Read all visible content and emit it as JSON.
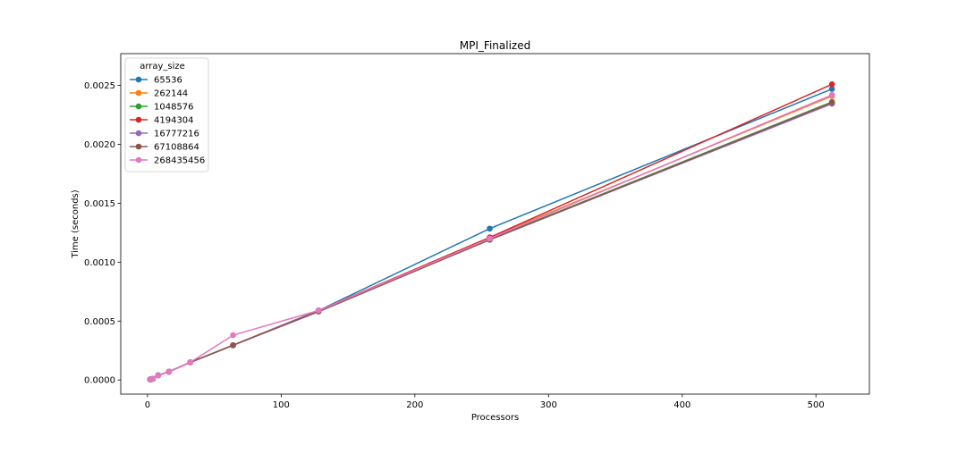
{
  "chart_data": {
    "type": "line",
    "title": "MPI_Finalized",
    "xlabel": "Processors",
    "ylabel": "Time (seconds)",
    "xlim": [
      -20,
      540
    ],
    "ylim": [
      -0.00012,
      0.00277
    ],
    "x_ticks": [
      0,
      100,
      200,
      300,
      400,
      500
    ],
    "y_ticks": [
      0.0,
      0.0005,
      0.001,
      0.0015,
      0.002,
      0.0025
    ],
    "x_tick_labels": [
      "0",
      "100",
      "200",
      "300",
      "400",
      "500"
    ],
    "y_tick_labels": [
      "0.0000",
      "0.0005",
      "0.0010",
      "0.0015",
      "0.0020",
      "0.0025"
    ],
    "grid": false,
    "legend_title": "array_size",
    "legend_position": "upper-left",
    "x": [
      2,
      4,
      8,
      16,
      32,
      64,
      128,
      256,
      512
    ],
    "series": [
      {
        "name": "65536",
        "color": "#1f77b4",
        "values": [
          5e-06,
          1e-05,
          4e-05,
          7e-05,
          0.00015,
          0.000295,
          0.00059,
          0.001285,
          0.00247
        ]
      },
      {
        "name": "262144",
        "color": "#ff7f0e",
        "values": [
          5e-06,
          1e-05,
          4e-05,
          7e-05,
          0.00015,
          0.000295,
          0.00059,
          0.00121,
          0.00241
        ]
      },
      {
        "name": "1048576",
        "color": "#2ca02c",
        "values": [
          5e-06,
          1e-05,
          4e-05,
          7e-05,
          0.00015,
          0.000295,
          0.00059,
          0.001195,
          0.00236
        ]
      },
      {
        "name": "4194304",
        "color": "#d62728",
        "values": [
          5e-06,
          1e-05,
          4e-05,
          7e-05,
          0.00015,
          0.000295,
          0.00059,
          0.00121,
          0.00251
        ]
      },
      {
        "name": "16777216",
        "color": "#9467bd",
        "values": [
          5e-06,
          1e-05,
          4e-05,
          7e-05,
          0.00015,
          0.000295,
          0.00059,
          0.00119,
          0.002345
        ]
      },
      {
        "name": "67108864",
        "color": "#8c564b",
        "values": [
          5e-06,
          1e-05,
          4e-05,
          7e-05,
          0.00015,
          0.000295,
          0.00058,
          0.00119,
          0.002355
        ]
      },
      {
        "name": "268435456",
        "color": "#e377c2",
        "values": [
          5e-06,
          1e-05,
          4e-05,
          7e-05,
          0.00015,
          0.00038,
          0.00059,
          0.0012,
          0.00242
        ]
      }
    ]
  }
}
